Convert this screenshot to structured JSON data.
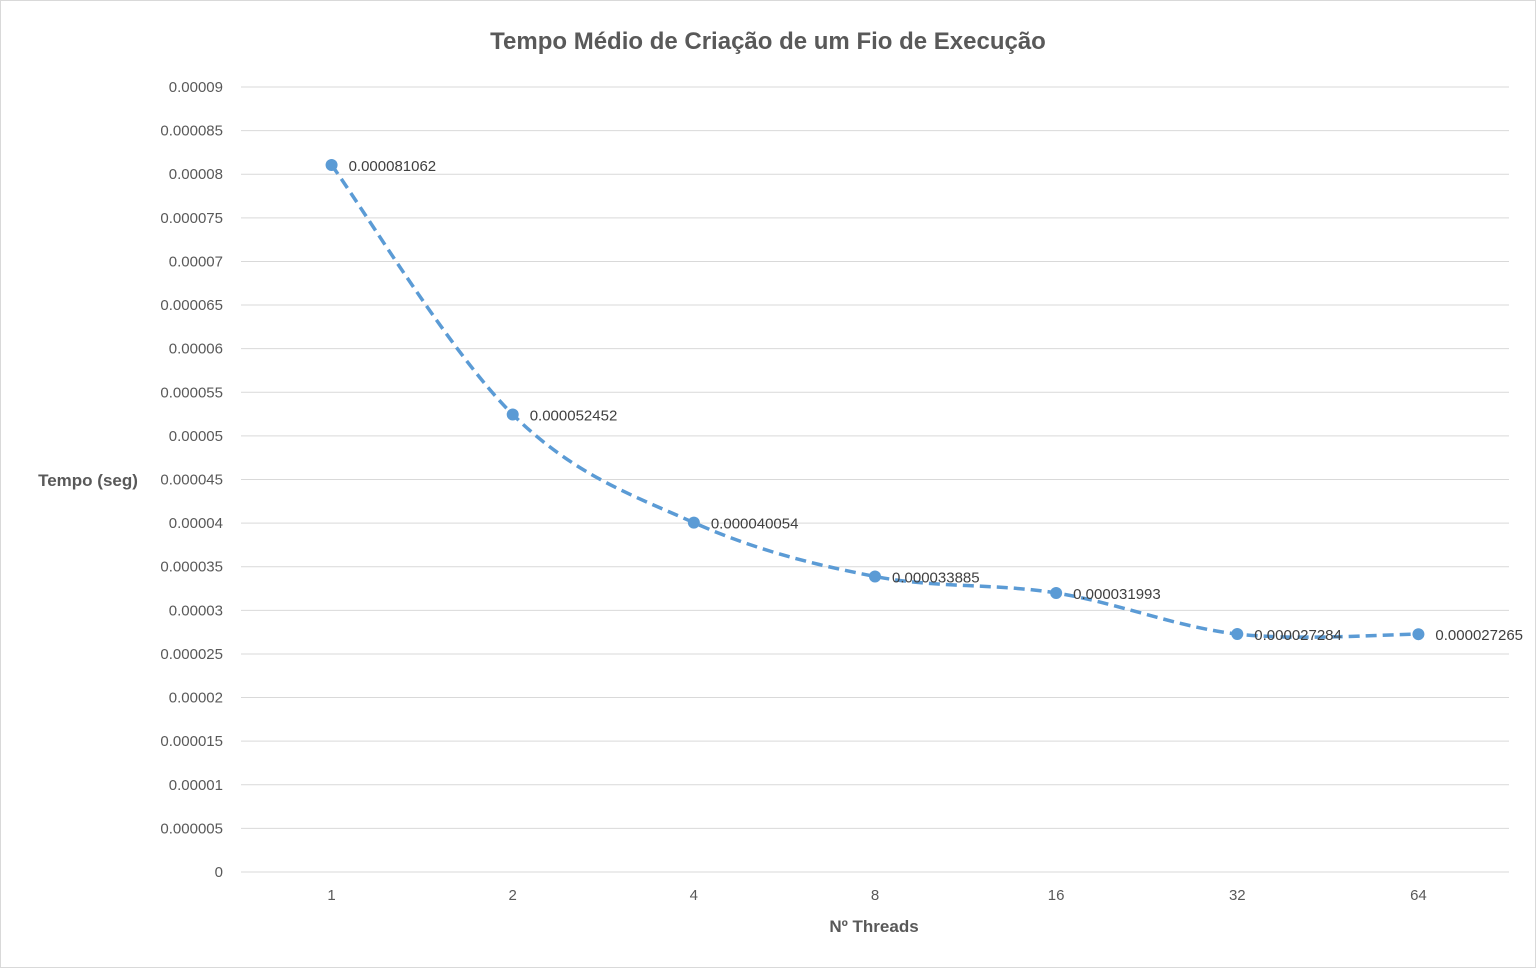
{
  "chart_data": {
    "type": "line",
    "title": "Tempo Médio de Criação  de um Fio de Execução",
    "xlabel": "Nº Threads",
    "ylabel": "Tempo (seg)",
    "categories": [
      "1",
      "2",
      "4",
      "8",
      "16",
      "32",
      "64"
    ],
    "series": [
      {
        "values": [
          8.1062e-05,
          5.2452e-05,
          4.0054e-05,
          3.3885e-05,
          3.1993e-05,
          2.7284e-05,
          2.7265e-05
        ],
        "data_labels": [
          "0.000081062",
          "0.000052452",
          "0.000040054",
          "0.000033885",
          "0.000031993",
          "0.000027284",
          "0.000027265"
        ],
        "color": "#5b9bd5",
        "line_style": "dashed",
        "marker": "circle"
      }
    ],
    "ylim": [
      0,
      9e-05
    ],
    "y_ticks": [
      "0",
      "0.000005",
      "0.00001",
      "0.000015",
      "0.00002",
      "0.000025",
      "0.00003",
      "0.000035",
      "0.00004",
      "0.000045",
      "0.00005",
      "0.000055",
      "0.00006",
      "0.000065",
      "0.00007",
      "0.000075",
      "0.00008",
      "0.000085",
      "0.00009"
    ],
    "grid": true,
    "legend": "none"
  }
}
